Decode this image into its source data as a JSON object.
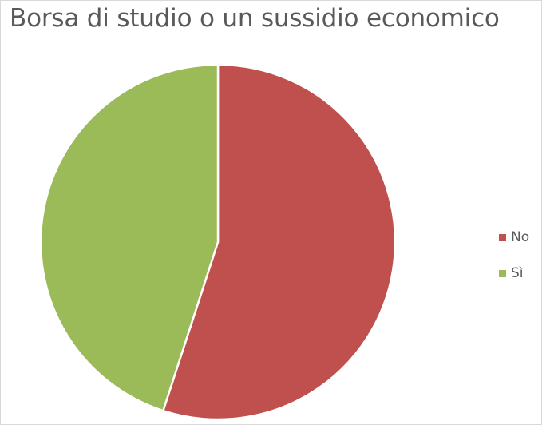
{
  "chart_data": {
    "type": "pie",
    "title": "Borsa di studio o un sussidio economico",
    "categories": [
      "No",
      "Sì"
    ],
    "values": [
      55,
      45
    ],
    "colors": [
      "#c0504d",
      "#9bbb59"
    ],
    "legend_position": "right"
  }
}
